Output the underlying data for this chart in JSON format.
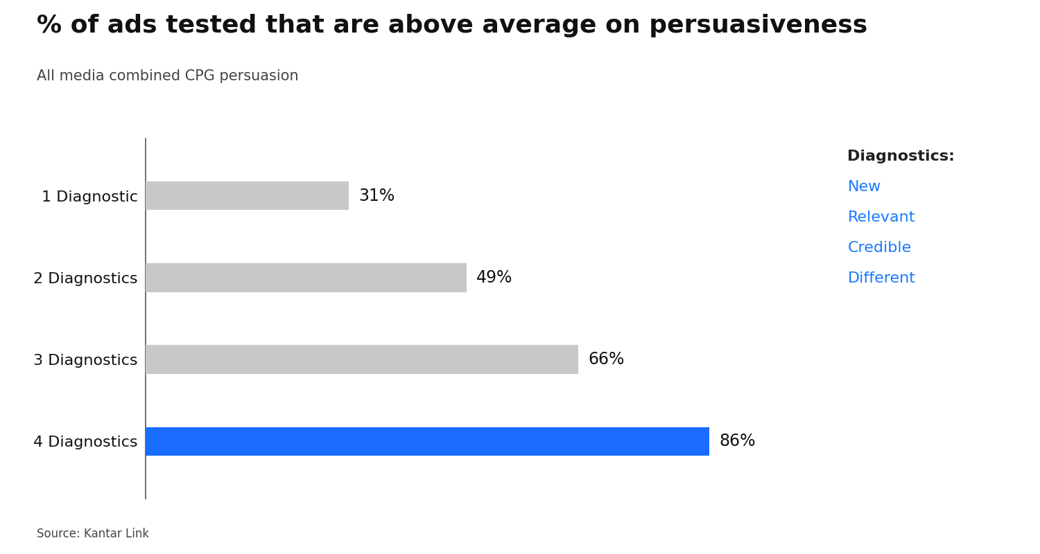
{
  "title": "% of ads tested that are above average on persuasiveness",
  "subtitle": "All media combined CPG persuasion",
  "source": "Source: Kantar Link",
  "categories": [
    "1 Diagnostic",
    "2 Diagnostics",
    "3 Diagnostics",
    "4 Diagnostics"
  ],
  "values": [
    31,
    49,
    66,
    86
  ],
  "bar_colors": [
    "#c8c8c8",
    "#c8c8c8",
    "#c8c8c8",
    "#1a6bff"
  ],
  "value_labels": [
    "31%",
    "49%",
    "66%",
    "86%"
  ],
  "xlim": [
    0,
    100
  ],
  "title_fontsize": 26,
  "subtitle_fontsize": 15,
  "label_fontsize": 16,
  "value_fontsize": 17,
  "source_fontsize": 12,
  "bar_height": 0.35,
  "background_color": "#ffffff",
  "legend_title": "Diagnostics:",
  "legend_items": [
    "New",
    "Relevant",
    "Credible",
    "Different"
  ],
  "legend_color": "#1a7aff",
  "legend_title_color": "#222222",
  "yline_color": "#555555",
  "title_color": "#111111",
  "subtitle_color": "#444444",
  "category_color": "#111111",
  "value_color": "#111111"
}
